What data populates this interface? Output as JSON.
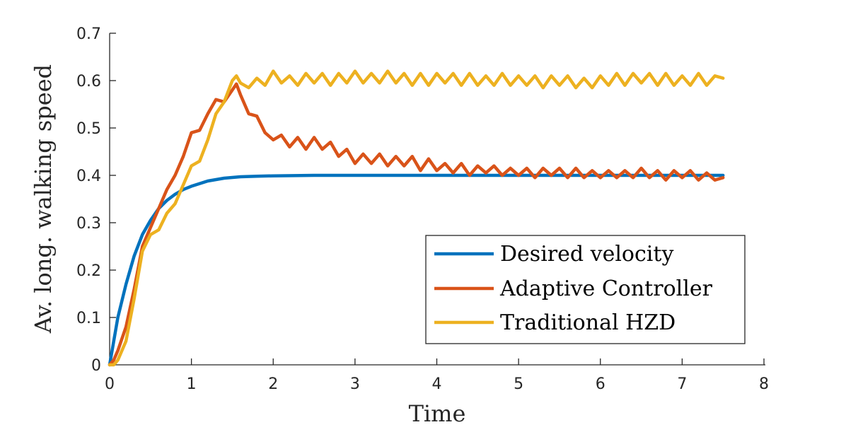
{
  "chart_data": {
    "type": "line",
    "title": "",
    "xlabel": "Time",
    "ylabel": "Av. long. walking speed",
    "xlim": [
      0,
      8
    ],
    "ylim": [
      0,
      0.7
    ],
    "x_ticks": [
      0,
      1,
      2,
      3,
      4,
      5,
      6,
      7,
      8
    ],
    "y_ticks": [
      0,
      0.1,
      0.2,
      0.3,
      0.4,
      0.5,
      0.6,
      0.7
    ],
    "x_tick_labels": [
      "0",
      "1",
      "2",
      "3",
      "4",
      "5",
      "6",
      "7",
      "8"
    ],
    "y_tick_labels": [
      "0",
      "0.1",
      "0.2",
      "0.3",
      "0.4",
      "0.5",
      "0.6",
      "0.7"
    ],
    "grid": false,
    "legend_position": "bottom-right",
    "series": [
      {
        "name": "Desired velocity",
        "color": "#0072BD",
        "x": [
          0,
          0.1,
          0.2,
          0.3,
          0.4,
          0.5,
          0.6,
          0.7,
          0.8,
          0.9,
          1.0,
          1.2,
          1.4,
          1.6,
          1.8,
          2.0,
          2.5,
          3.0,
          4.0,
          5.0,
          6.0,
          7.0,
          7.5
        ],
        "y": [
          0.0,
          0.1,
          0.17,
          0.23,
          0.275,
          0.305,
          0.33,
          0.347,
          0.36,
          0.37,
          0.377,
          0.388,
          0.394,
          0.397,
          0.398,
          0.399,
          0.4,
          0.4,
          0.4,
          0.4,
          0.4,
          0.4,
          0.4
        ]
      },
      {
        "name": "Adaptive Controller",
        "color": "#D95319",
        "x": [
          0,
          0.05,
          0.1,
          0.2,
          0.3,
          0.4,
          0.5,
          0.6,
          0.7,
          0.8,
          0.9,
          1.0,
          1.1,
          1.2,
          1.3,
          1.4,
          1.5,
          1.55,
          1.6,
          1.7,
          1.8,
          1.9,
          2.0,
          2.1,
          2.2,
          2.3,
          2.4,
          2.5,
          2.6,
          2.7,
          2.8,
          2.9,
          3.0,
          3.1,
          3.2,
          3.3,
          3.4,
          3.5,
          3.6,
          3.7,
          3.8,
          3.9,
          4.0,
          4.1,
          4.2,
          4.3,
          4.4,
          4.5,
          4.6,
          4.7,
          4.8,
          4.9,
          5.0,
          5.1,
          5.2,
          5.3,
          5.4,
          5.5,
          5.6,
          5.7,
          5.8,
          5.9,
          6.0,
          6.1,
          6.2,
          6.3,
          6.4,
          6.5,
          6.6,
          6.7,
          6.8,
          6.9,
          7.0,
          7.1,
          7.2,
          7.3,
          7.4,
          7.5
        ],
        "y": [
          0.0,
          0.01,
          0.03,
          0.08,
          0.16,
          0.25,
          0.29,
          0.33,
          0.37,
          0.4,
          0.44,
          0.49,
          0.495,
          0.53,
          0.56,
          0.555,
          0.58,
          0.593,
          0.57,
          0.53,
          0.525,
          0.49,
          0.475,
          0.485,
          0.46,
          0.48,
          0.455,
          0.48,
          0.455,
          0.47,
          0.44,
          0.455,
          0.425,
          0.445,
          0.425,
          0.445,
          0.42,
          0.44,
          0.42,
          0.44,
          0.41,
          0.435,
          0.41,
          0.425,
          0.405,
          0.425,
          0.4,
          0.42,
          0.405,
          0.42,
          0.4,
          0.415,
          0.4,
          0.415,
          0.395,
          0.415,
          0.4,
          0.415,
          0.395,
          0.415,
          0.395,
          0.41,
          0.395,
          0.41,
          0.395,
          0.41,
          0.395,
          0.415,
          0.395,
          0.41,
          0.39,
          0.41,
          0.395,
          0.41,
          0.39,
          0.405,
          0.39,
          0.395
        ]
      },
      {
        "name": "Traditional HZD",
        "color": "#EDB120",
        "x": [
          0,
          0.05,
          0.1,
          0.2,
          0.3,
          0.4,
          0.5,
          0.6,
          0.7,
          0.8,
          0.9,
          1.0,
          1.1,
          1.2,
          1.3,
          1.4,
          1.5,
          1.55,
          1.6,
          1.7,
          1.8,
          1.9,
          2.0,
          2.1,
          2.2,
          2.3,
          2.4,
          2.5,
          2.6,
          2.7,
          2.8,
          2.9,
          3.0,
          3.1,
          3.2,
          3.3,
          3.4,
          3.5,
          3.6,
          3.7,
          3.8,
          3.9,
          4.0,
          4.1,
          4.2,
          4.3,
          4.4,
          4.5,
          4.6,
          4.7,
          4.8,
          4.9,
          5.0,
          5.1,
          5.2,
          5.3,
          5.4,
          5.5,
          5.6,
          5.7,
          5.8,
          5.9,
          6.0,
          6.1,
          6.2,
          6.3,
          6.4,
          6.5,
          6.6,
          6.7,
          6.8,
          6.9,
          7.0,
          7.1,
          7.2,
          7.3,
          7.4,
          7.5
        ],
        "y": [
          0.0,
          0.0,
          0.01,
          0.05,
          0.14,
          0.24,
          0.275,
          0.285,
          0.32,
          0.34,
          0.38,
          0.42,
          0.43,
          0.475,
          0.53,
          0.555,
          0.6,
          0.61,
          0.595,
          0.585,
          0.605,
          0.59,
          0.62,
          0.595,
          0.61,
          0.59,
          0.615,
          0.595,
          0.615,
          0.59,
          0.615,
          0.595,
          0.62,
          0.595,
          0.615,
          0.595,
          0.62,
          0.595,
          0.615,
          0.59,
          0.615,
          0.59,
          0.615,
          0.595,
          0.615,
          0.59,
          0.615,
          0.59,
          0.61,
          0.59,
          0.615,
          0.59,
          0.61,
          0.59,
          0.61,
          0.585,
          0.61,
          0.59,
          0.61,
          0.585,
          0.605,
          0.585,
          0.61,
          0.59,
          0.615,
          0.59,
          0.615,
          0.595,
          0.615,
          0.59,
          0.615,
          0.59,
          0.61,
          0.59,
          0.615,
          0.59,
          0.61,
          0.605
        ]
      }
    ]
  }
}
